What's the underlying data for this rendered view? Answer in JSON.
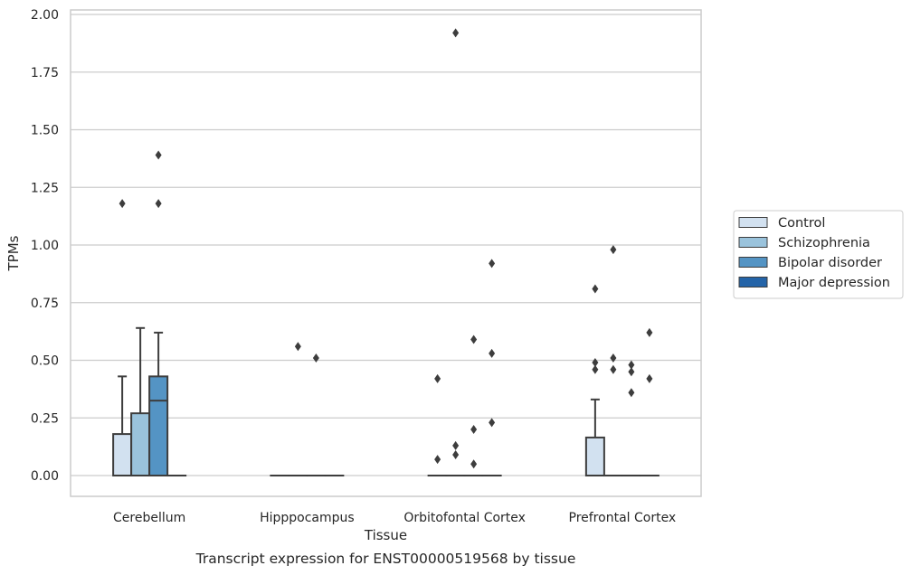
{
  "caption": "Transcript expression for ENST00000519568 by tissue",
  "chart_data": {
    "type": "box",
    "xlabel": "Tissue",
    "ylabel": "TPMs",
    "ylim": [
      -0.09,
      2.02
    ],
    "yticks": [
      "0.00",
      "0.25",
      "0.50",
      "0.75",
      "1.00",
      "1.25",
      "1.50",
      "1.75",
      "2.00"
    ],
    "grid": "horizontal",
    "legend_position": "right",
    "categories": [
      "Cerebellum",
      "Hipppocampus",
      "Orbitofontal Cortex",
      "Prefrontal Cortex"
    ],
    "series": [
      {
        "name": "Control",
        "color": "#d2e1f0",
        "boxes": [
          {
            "q1": 0,
            "median": 0,
            "q3": 0.18,
            "whisker_low": 0,
            "whisker_high": 0.43,
            "outliers": [
              1.18
            ]
          },
          {
            "q1": 0,
            "median": 0,
            "q3": 0,
            "whisker_low": 0,
            "whisker_high": 0,
            "outliers": []
          },
          {
            "q1": 0,
            "median": 0,
            "q3": 0,
            "whisker_low": 0,
            "whisker_high": 0,
            "outliers": [
              0.42,
              0.07
            ]
          },
          {
            "q1": 0,
            "median": 0,
            "q3": 0.165,
            "whisker_low": 0,
            "whisker_high": 0.33,
            "outliers": [
              0.81,
              0.49,
              0.46
            ]
          }
        ]
      },
      {
        "name": "Schizophrenia",
        "color": "#9ac3dc",
        "boxes": [
          {
            "q1": 0,
            "median": 0,
            "q3": 0.27,
            "whisker_low": 0,
            "whisker_high": 0.64,
            "outliers": []
          },
          {
            "q1": 0,
            "median": 0,
            "q3": 0,
            "whisker_low": 0,
            "whisker_high": 0,
            "outliers": [
              0.56
            ]
          },
          {
            "q1": 0,
            "median": 0,
            "q3": 0,
            "whisker_low": 0,
            "whisker_high": 0,
            "outliers": [
              1.92,
              0.13,
              0.09
            ]
          },
          {
            "q1": 0,
            "median": 0,
            "q3": 0,
            "whisker_low": 0,
            "whisker_high": 0,
            "outliers": [
              0.98,
              0.51,
              0.46
            ]
          }
        ]
      },
      {
        "name": "Bipolar disorder",
        "color": "#5494c4",
        "boxes": [
          {
            "q1": 0,
            "median": 0.325,
            "q3": 0.43,
            "whisker_low": 0,
            "whisker_high": 0.62,
            "outliers": [
              1.39,
              1.18
            ]
          },
          {
            "q1": 0,
            "median": 0,
            "q3": 0,
            "whisker_low": 0,
            "whisker_high": 0,
            "outliers": [
              0.51
            ]
          },
          {
            "q1": 0,
            "median": 0,
            "q3": 0,
            "whisker_low": 0,
            "whisker_high": 0,
            "outliers": [
              0.59,
              0.2,
              0.05
            ]
          },
          {
            "q1": 0,
            "median": 0,
            "q3": 0,
            "whisker_low": 0,
            "whisker_high": 0,
            "outliers": [
              0.48,
              0.45,
              0.36
            ]
          }
        ]
      },
      {
        "name": "Major depression",
        "color": "#2464a8",
        "boxes": [
          {
            "q1": 0,
            "median": 0,
            "q3": 0,
            "whisker_low": 0,
            "whisker_high": 0,
            "outliers": []
          },
          {
            "q1": 0,
            "median": 0,
            "q3": 0,
            "whisker_low": 0,
            "whisker_high": 0,
            "outliers": []
          },
          {
            "q1": 0,
            "median": 0,
            "q3": 0,
            "whisker_low": 0,
            "whisker_high": 0,
            "outliers": [
              0.92,
              0.53,
              0.23
            ]
          },
          {
            "q1": 0,
            "median": 0,
            "q3": 0,
            "whisker_low": 0,
            "whisker_high": 0,
            "outliers": [
              0.62,
              0.42
            ]
          }
        ]
      }
    ]
  }
}
